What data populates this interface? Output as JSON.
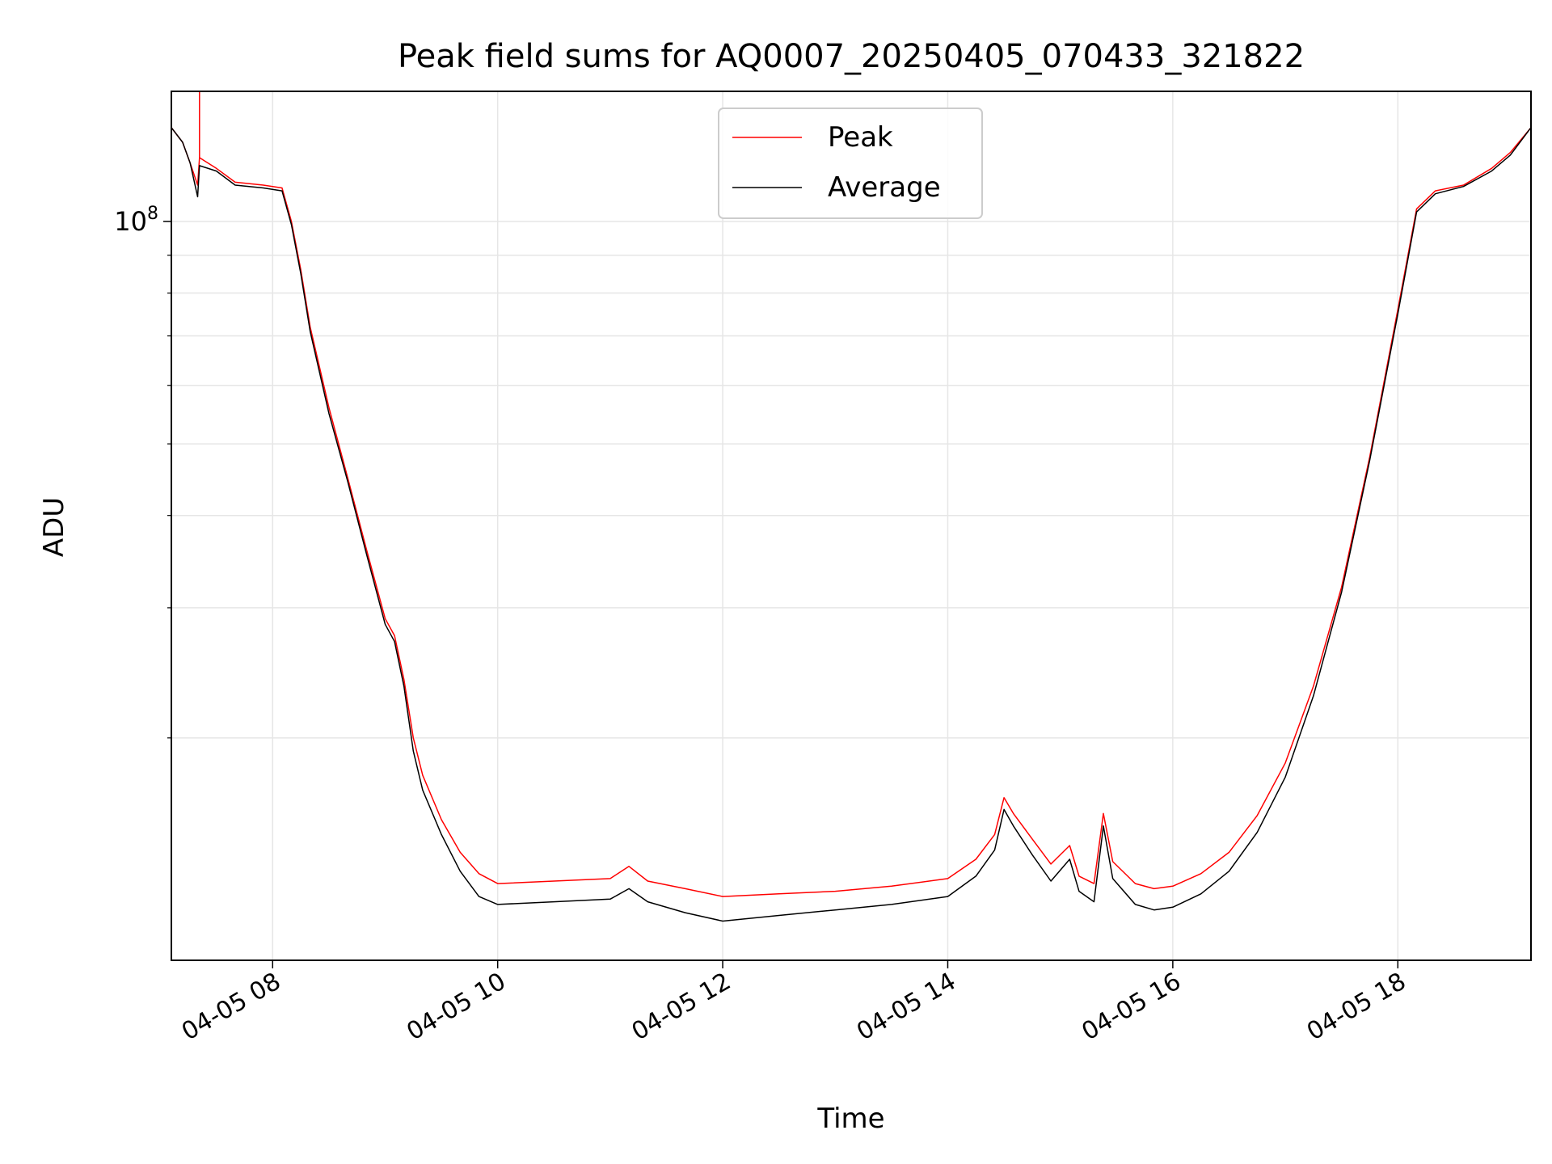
{
  "chart_data": {
    "type": "line",
    "title": "Peak field sums for AQ0007_20250405_070433_321822",
    "xlabel": "Time",
    "ylabel": "ADU",
    "y_scale": "log",
    "grid": true,
    "legend_position": "upper center",
    "xlim": [
      "2025-04-05 07:06",
      "2025-04-05 19:11"
    ],
    "ylim": [
      10000000,
      150000000
    ],
    "x_ticks": [
      {
        "value": "2025-04-05 08:00",
        "label": "04-05 08"
      },
      {
        "value": "2025-04-05 10:00",
        "label": "04-05 10"
      },
      {
        "value": "2025-04-05 12:00",
        "label": "04-05 12"
      },
      {
        "value": "2025-04-05 14:00",
        "label": "04-05 14"
      },
      {
        "value": "2025-04-05 16:00",
        "label": "04-05 16"
      },
      {
        "value": "2025-04-05 18:00",
        "label": "04-05 18"
      }
    ],
    "y_major_ticks": [
      {
        "value": 100000000,
        "label_base": "10",
        "label_exp": "8"
      }
    ],
    "y_minor_ticks": [
      20000000,
      30000000,
      40000000,
      50000000,
      60000000,
      70000000,
      80000000,
      90000000
    ],
    "series": [
      {
        "name": "Peak",
        "color": "#ff0000",
        "spikes": [
          {
            "x": "2025-04-05 07:21",
            "y": 150000000
          }
        ],
        "points": [
          [
            "2025-04-05 07:06",
            134000000
          ],
          [
            "2025-04-05 07:12",
            128000000
          ],
          [
            "2025-04-05 07:16",
            120000000
          ],
          [
            "2025-04-05 07:20",
            112000000
          ],
          [
            "2025-04-05 07:21",
            122000000
          ],
          [
            "2025-04-05 07:30",
            118000000
          ],
          [
            "2025-04-05 07:40",
            113000000
          ],
          [
            "2025-04-05 07:55",
            112000000
          ],
          [
            "2025-04-05 08:05",
            111000000
          ],
          [
            "2025-04-05 08:10",
            100000000
          ],
          [
            "2025-04-05 08:15",
            86000000
          ],
          [
            "2025-04-05 08:20",
            72000000
          ],
          [
            "2025-04-05 08:30",
            56000000
          ],
          [
            "2025-04-05 08:40",
            45000000
          ],
          [
            "2025-04-05 08:50",
            36000000
          ],
          [
            "2025-04-05 09:00",
            29000000
          ],
          [
            "2025-04-05 09:05",
            27500000
          ],
          [
            "2025-04-05 09:10",
            24000000
          ],
          [
            "2025-04-05 09:15",
            20000000
          ],
          [
            "2025-04-05 09:20",
            17800000
          ],
          [
            "2025-04-05 09:30",
            15500000
          ],
          [
            "2025-04-05 09:40",
            14000000
          ],
          [
            "2025-04-05 09:50",
            13100000
          ],
          [
            "2025-04-05 10:00",
            12700000
          ],
          [
            "2025-04-05 10:30",
            12800000
          ],
          [
            "2025-04-05 11:00",
            12900000
          ],
          [
            "2025-04-05 11:10",
            13400000
          ],
          [
            "2025-04-05 11:20",
            12800000
          ],
          [
            "2025-04-05 11:40",
            12500000
          ],
          [
            "2025-04-05 12:00",
            12200000
          ],
          [
            "2025-04-05 12:30",
            12300000
          ],
          [
            "2025-04-05 13:00",
            12400000
          ],
          [
            "2025-04-05 13:30",
            12600000
          ],
          [
            "2025-04-05 14:00",
            12900000
          ],
          [
            "2025-04-05 14:15",
            13700000
          ],
          [
            "2025-04-05 14:25",
            14800000
          ],
          [
            "2025-04-05 14:30",
            16600000
          ],
          [
            "2025-04-05 14:35",
            15800000
          ],
          [
            "2025-04-05 14:45",
            14600000
          ],
          [
            "2025-04-05 14:55",
            13500000
          ],
          [
            "2025-04-05 15:05",
            14300000
          ],
          [
            "2025-04-05 15:10",
            13000000
          ],
          [
            "2025-04-05 15:18",
            12700000
          ],
          [
            "2025-04-05 15:23",
            15800000
          ],
          [
            "2025-04-05 15:28",
            13600000
          ],
          [
            "2025-04-05 15:40",
            12700000
          ],
          [
            "2025-04-05 15:50",
            12500000
          ],
          [
            "2025-04-05 16:00",
            12600000
          ],
          [
            "2025-04-05 16:15",
            13100000
          ],
          [
            "2025-04-05 16:30",
            14000000
          ],
          [
            "2025-04-05 16:45",
            15700000
          ],
          [
            "2025-04-05 17:00",
            18500000
          ],
          [
            "2025-04-05 17:15",
            23500000
          ],
          [
            "2025-04-05 17:30",
            32000000
          ],
          [
            "2025-04-05 17:45",
            48000000
          ],
          [
            "2025-04-05 18:00",
            76000000
          ],
          [
            "2025-04-05 18:10",
            104000000
          ],
          [
            "2025-04-05 18:20",
            110000000
          ],
          [
            "2025-04-05 18:35",
            112000000
          ],
          [
            "2025-04-05 18:50",
            118000000
          ],
          [
            "2025-04-05 19:00",
            124000000
          ],
          [
            "2025-04-05 19:11",
            134000000
          ]
        ]
      },
      {
        "name": "Average",
        "color": "#000000",
        "points": [
          [
            "2025-04-05 07:06",
            134000000
          ],
          [
            "2025-04-05 07:12",
            128000000
          ],
          [
            "2025-04-05 07:16",
            120000000
          ],
          [
            "2025-04-05 07:20",
            108000000
          ],
          [
            "2025-04-05 07:21",
            119000000
          ],
          [
            "2025-04-05 07:30",
            117000000
          ],
          [
            "2025-04-05 07:40",
            112000000
          ],
          [
            "2025-04-05 07:55",
            111000000
          ],
          [
            "2025-04-05 08:05",
            110000000
          ],
          [
            "2025-04-05 08:10",
            99000000
          ],
          [
            "2025-04-05 08:15",
            85000000
          ],
          [
            "2025-04-05 08:20",
            71000000
          ],
          [
            "2025-04-05 08:30",
            55000000
          ],
          [
            "2025-04-05 08:40",
            44500000
          ],
          [
            "2025-04-05 08:50",
            35500000
          ],
          [
            "2025-04-05 09:00",
            28500000
          ],
          [
            "2025-04-05 09:05",
            27000000
          ],
          [
            "2025-04-05 09:10",
            23500000
          ],
          [
            "2025-04-05 09:15",
            19200000
          ],
          [
            "2025-04-05 09:20",
            17000000
          ],
          [
            "2025-04-05 09:30",
            14800000
          ],
          [
            "2025-04-05 09:40",
            13200000
          ],
          [
            "2025-04-05 09:50",
            12200000
          ],
          [
            "2025-04-05 10:00",
            11900000
          ],
          [
            "2025-04-05 10:30",
            12000000
          ],
          [
            "2025-04-05 11:00",
            12100000
          ],
          [
            "2025-04-05 11:10",
            12500000
          ],
          [
            "2025-04-05 11:20",
            12000000
          ],
          [
            "2025-04-05 11:40",
            11600000
          ],
          [
            "2025-04-05 12:00",
            11300000
          ],
          [
            "2025-04-05 12:30",
            11500000
          ],
          [
            "2025-04-05 13:00",
            11700000
          ],
          [
            "2025-04-05 13:30",
            11900000
          ],
          [
            "2025-04-05 14:00",
            12200000
          ],
          [
            "2025-04-05 14:15",
            13000000
          ],
          [
            "2025-04-05 14:25",
            14100000
          ],
          [
            "2025-04-05 14:30",
            16000000
          ],
          [
            "2025-04-05 14:35",
            15200000
          ],
          [
            "2025-04-05 14:45",
            13900000
          ],
          [
            "2025-04-05 14:55",
            12800000
          ],
          [
            "2025-04-05 15:05",
            13700000
          ],
          [
            "2025-04-05 15:10",
            12400000
          ],
          [
            "2025-04-05 15:18",
            12000000
          ],
          [
            "2025-04-05 15:23",
            15200000
          ],
          [
            "2025-04-05 15:28",
            12900000
          ],
          [
            "2025-04-05 15:40",
            11900000
          ],
          [
            "2025-04-05 15:50",
            11700000
          ],
          [
            "2025-04-05 16:00",
            11800000
          ],
          [
            "2025-04-05 16:15",
            12300000
          ],
          [
            "2025-04-05 16:30",
            13200000
          ],
          [
            "2025-04-05 16:45",
            14900000
          ],
          [
            "2025-04-05 17:00",
            17700000
          ],
          [
            "2025-04-05 17:15",
            22800000
          ],
          [
            "2025-04-05 17:30",
            31500000
          ],
          [
            "2025-04-05 17:45",
            47500000
          ],
          [
            "2025-04-05 18:00",
            75000000
          ],
          [
            "2025-04-05 18:10",
            103000000
          ],
          [
            "2025-04-05 18:20",
            109000000
          ],
          [
            "2025-04-05 18:35",
            111500000
          ],
          [
            "2025-04-05 18:50",
            117000000
          ],
          [
            "2025-04-05 19:00",
            123000000
          ],
          [
            "2025-04-05 19:11",
            134000000
          ]
        ]
      }
    ]
  }
}
